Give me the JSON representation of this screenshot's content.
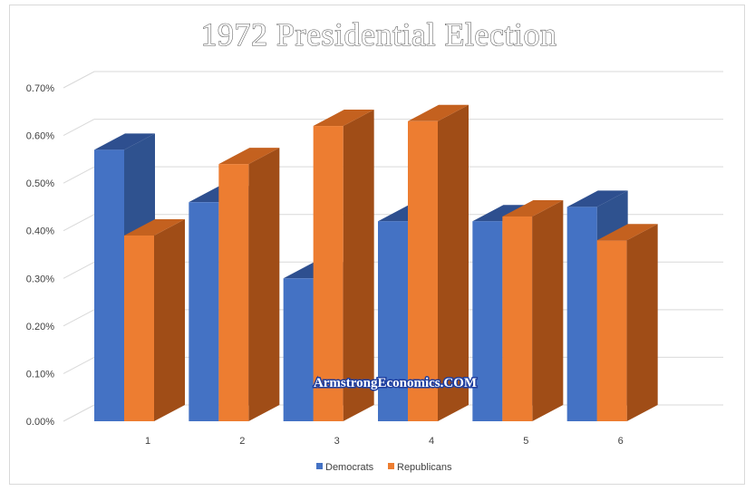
{
  "chart_data": {
    "type": "bar",
    "title": "1972 Presidential Election",
    "categories": [
      "1",
      "2",
      "3",
      "4",
      "5",
      "6"
    ],
    "series": [
      {
        "name": "Democrats",
        "values": [
          0.57,
          0.46,
          0.3,
          0.42,
          0.42,
          0.45
        ],
        "color": "#4472c4"
      },
      {
        "name": "Republicans",
        "values": [
          0.39,
          0.54,
          0.62,
          0.63,
          0.43,
          0.38
        ],
        "color": "#ed7d31"
      }
    ],
    "ylim": [
      0,
      0.7
    ],
    "y_ticks": [
      "0.00%",
      "0.10%",
      "0.20%",
      "0.30%",
      "0.40%",
      "0.50%",
      "0.60%",
      "0.70%"
    ],
    "grid": true,
    "legend": "bottom",
    "three_d": true
  },
  "watermark": "ArmstrongEconomics.COM",
  "colors": {
    "democrat_side": "#2f528f",
    "democrat_top": "#2e4f8f",
    "republican_side": "#a04d17",
    "republican_top": "#c4611f",
    "grid": "#d9d9d9"
  }
}
